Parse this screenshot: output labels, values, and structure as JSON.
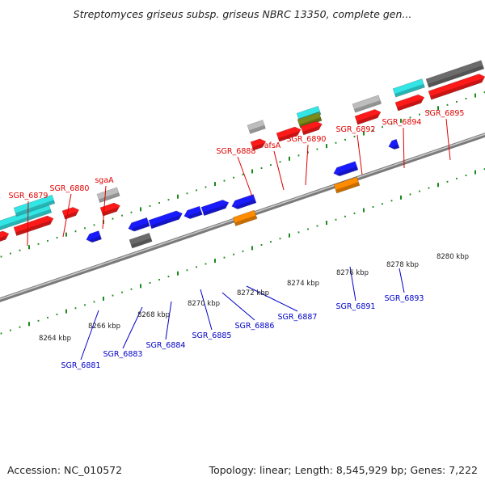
{
  "title": "Streptomyces griseus subsp. griseus NBRC 13350, complete gen...",
  "footer": {
    "accession": "Accession: NC_010572",
    "summary": "Topology: linear; Length: 8,545,929 bp; Genes: 7,222"
  },
  "colors": {
    "red": "#ff1a1a",
    "blue": "#1a1aff",
    "cyan": "#33e6e6",
    "gray": "#bdbdbd",
    "dark_gray": "#6b6b6b",
    "orange": "#ff8c00",
    "olive": "#7a8a1a",
    "tick_green": "#1a8a1a",
    "label_red": "#e00000",
    "label_blue": "#0000c8"
  },
  "kbp_labels": [
    "8264 kbp",
    "8266 kbp",
    "8268 kbp",
    "8270 kbp",
    "8272 kbp",
    "8274 kbp",
    "8276 kbp",
    "8278 kbp",
    "8280 kbp"
  ],
  "upper_labels": [
    {
      "text": "SGR_6879"
    },
    {
      "text": "SGR_6880"
    },
    {
      "text": "sgaA"
    },
    {
      "text": "SGR_6888"
    },
    {
      "text": "afsA"
    },
    {
      "text": "SGR_6890"
    },
    {
      "text": "SGR_6892"
    },
    {
      "text": "SGR_6894"
    },
    {
      "text": "SGR_6895"
    }
  ],
  "lower_labels": [
    {
      "text": "SGR_6881"
    },
    {
      "text": "SGR_6883"
    },
    {
      "text": "SGR_6884"
    },
    {
      "text": "SGR_6885"
    },
    {
      "text": "SGR_6886"
    },
    {
      "text": "SGR_6887"
    },
    {
      "text": "SGR_6891"
    },
    {
      "text": "SGR_6893"
    }
  ]
}
